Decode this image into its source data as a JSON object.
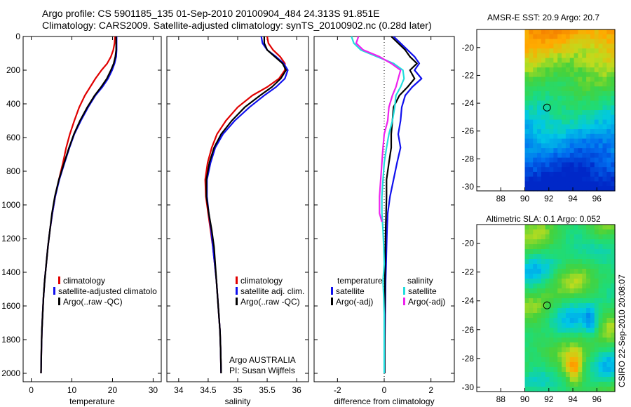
{
  "titles": {
    "line1": "Argo profile: CS 5901185_135 01-Sep-2010 20100904_484 24.313S 91.851E",
    "line2": "Climatology: CARS2009. Satellite-adjusted climatology: synTS_20100902.nc (0.28d later)"
  },
  "colors": {
    "climatology": "#e00000",
    "satellite": "#1010ee",
    "argo": "#000000",
    "satellite_salinity": "#22dddd",
    "argo_salinity": "#ee22ee"
  },
  "chart_data": [
    {
      "type": "line",
      "id": "temperature",
      "xlabel": "temperature",
      "ylabel": "",
      "xlim": [
        -2,
        32
      ],
      "ylim": [
        2050,
        0
      ],
      "xticks": [
        0,
        10,
        20,
        30
      ],
      "yticks": [
        0,
        200,
        400,
        600,
        800,
        1000,
        1200,
        1400,
        1600,
        1800,
        2000
      ],
      "legend": {
        "placement": "lower-right",
        "entries": [
          "climatology",
          "satellite-adjusted climatology",
          "Argo(..raw -QC)"
        ],
        "visible_text": [
          "climatology",
          "satellite-adjusted climatolo",
          "Argo(..raw -QC)"
        ]
      },
      "series": [
        {
          "name": "climatology",
          "color_key": "climatology",
          "x": [
            20.6,
            20.5,
            20.2,
            19.6,
            18.7,
            17.3,
            15.8,
            14.5,
            13.2,
            11.8,
            10.6,
            9.5,
            8.6,
            7.8,
            6.8,
            5.9,
            5.2,
            4.6,
            4.1,
            3.7,
            3.3,
            3.0,
            2.8,
            2.6,
            2.5,
            2.4
          ],
          "y": [
            0,
            40,
            80,
            120,
            160,
            200,
            250,
            300,
            350,
            420,
            500,
            580,
            660,
            750,
            850,
            950,
            1050,
            1150,
            1250,
            1350,
            1450,
            1550,
            1650,
            1750,
            1850,
            2000
          ]
        },
        {
          "name": "satellite-adjusted climatology",
          "color_key": "satellite",
          "x": [
            21.0,
            21.0,
            21.0,
            20.9,
            20.5,
            19.9,
            18.9,
            17.5,
            15.8,
            14.0,
            12.2,
            10.6,
            9.4,
            8.2,
            6.9,
            5.9,
            5.2,
            4.6,
            4.1,
            3.7,
            3.3,
            3.0,
            2.8,
            2.6,
            2.5,
            2.4
          ],
          "y": [
            0,
            40,
            80,
            120,
            160,
            200,
            250,
            300,
            350,
            420,
            500,
            580,
            660,
            750,
            850,
            950,
            1050,
            1150,
            1250,
            1350,
            1450,
            1550,
            1650,
            1750,
            1850,
            2000
          ]
        },
        {
          "name": "Argo(..raw -QC)",
          "color_key": "argo",
          "x": [
            20.9,
            20.9,
            20.9,
            20.7,
            20.3,
            19.6,
            18.6,
            17.2,
            15.6,
            13.8,
            12.0,
            10.5,
            9.3,
            8.1,
            6.8,
            5.8,
            5.1,
            4.6,
            4.1,
            3.7,
            3.3,
            3.0,
            2.8,
            2.6,
            2.5,
            2.4
          ],
          "y": [
            0,
            40,
            80,
            120,
            160,
            200,
            250,
            300,
            350,
            420,
            500,
            580,
            660,
            750,
            850,
            950,
            1050,
            1150,
            1250,
            1350,
            1450,
            1550,
            1650,
            1750,
            1850,
            2000
          ]
        }
      ]
    },
    {
      "type": "line",
      "id": "salinity",
      "xlabel": "salinity",
      "xlim": [
        33.8,
        36.2
      ],
      "ylim": [
        2050,
        0
      ],
      "xticks": [
        34,
        34.5,
        35,
        35.5,
        36
      ],
      "legend": {
        "placement": "lower-right",
        "entries": [
          "climatology",
          "satellite adj. clim.",
          "Argo(..raw -QC)"
        ]
      },
      "annotation": [
        "Argo AUSTRALIA",
        "PI: Susan Wijffels"
      ],
      "series": [
        {
          "name": "climatology",
          "color_key": "climatology",
          "x": [
            35.5,
            35.52,
            35.6,
            35.72,
            35.8,
            35.8,
            35.7,
            35.5,
            35.25,
            35.0,
            34.8,
            34.65,
            34.56,
            34.49,
            34.45,
            34.46,
            34.5,
            34.54,
            34.58,
            34.61,
            34.64,
            34.66,
            34.68,
            34.7,
            34.71,
            34.72
          ],
          "y": [
            0,
            40,
            80,
            120,
            160,
            200,
            250,
            300,
            350,
            420,
            500,
            580,
            660,
            750,
            850,
            950,
            1050,
            1150,
            1250,
            1350,
            1450,
            1550,
            1650,
            1750,
            1850,
            2000
          ]
        },
        {
          "name": "satellite adj. clim.",
          "color_key": "satellite",
          "x": [
            35.4,
            35.42,
            35.5,
            35.65,
            35.78,
            35.85,
            35.8,
            35.65,
            35.45,
            35.2,
            34.95,
            34.75,
            34.62,
            34.54,
            34.48,
            34.48,
            34.51,
            34.55,
            34.58,
            34.61,
            34.64,
            34.66,
            34.68,
            34.7,
            34.71,
            34.72
          ],
          "y": [
            0,
            40,
            80,
            120,
            160,
            200,
            250,
            300,
            350,
            420,
            500,
            580,
            660,
            750,
            850,
            950,
            1050,
            1150,
            1250,
            1350,
            1450,
            1550,
            1650,
            1750,
            1850,
            2000
          ]
        },
        {
          "name": "Argo(..raw -QC)",
          "color_key": "argo",
          "x": [
            35.45,
            35.45,
            35.5,
            35.63,
            35.76,
            35.82,
            35.73,
            35.58,
            35.38,
            35.12,
            34.9,
            34.72,
            34.6,
            34.52,
            34.47,
            34.47,
            34.51,
            34.56,
            34.6,
            34.62,
            34.64,
            34.66,
            34.68,
            34.7,
            34.71,
            34.72
          ],
          "y": [
            0,
            40,
            80,
            120,
            160,
            200,
            250,
            300,
            350,
            420,
            500,
            580,
            660,
            750,
            850,
            950,
            1050,
            1150,
            1250,
            1350,
            1450,
            1550,
            1650,
            1750,
            1850,
            2000
          ]
        }
      ]
    },
    {
      "type": "line",
      "id": "difference",
      "xlabel": "difference from climatology",
      "xlim": [
        -3,
        3
      ],
      "ylim": [
        2050,
        0
      ],
      "xticks": [
        -2,
        0,
        2
      ],
      "zero_line": "dotted",
      "legend": {
        "placement": "lower-center",
        "groups": [
          {
            "title": "temperature",
            "entries": [
              "satellite",
              "Argo(-adj)"
            ]
          },
          {
            "title": "salinity",
            "entries": [
              "satellite",
              "Argo(-adj)"
            ]
          }
        ]
      },
      "series": [
        {
          "name": "temperature satellite",
          "color_key": "satellite",
          "x": [
            0.4,
            0.7,
            1.0,
            1.3,
            1.5,
            1.3,
            1.6,
            1.2,
            0.9,
            0.75,
            0.7,
            0.6,
            0.7,
            0.55,
            0.4,
            0.25,
            0.15,
            0.12,
            0.1,
            0.08,
            0.06,
            0.05,
            0.04,
            0.03,
            0.02,
            0.02
          ],
          "y": [
            0,
            40,
            80,
            120,
            160,
            200,
            250,
            300,
            350,
            420,
            500,
            580,
            660,
            750,
            850,
            950,
            1050,
            1150,
            1250,
            1350,
            1450,
            1550,
            1650,
            1750,
            1850,
            2000
          ]
        },
        {
          "name": "temperature Argo(-adj)",
          "color_key": "argo",
          "x": [
            0.3,
            0.6,
            0.9,
            1.1,
            1.4,
            1.1,
            1.3,
            1.0,
            0.65,
            0.4,
            0.35,
            0.3,
            0.3,
            0.2,
            0.1,
            0.1,
            0.08,
            0.06,
            0.05,
            0.04,
            0.03,
            0.03,
            0.02,
            0.02,
            0.02,
            0.02
          ],
          "y": [
            0,
            40,
            80,
            120,
            160,
            200,
            250,
            300,
            350,
            420,
            500,
            580,
            660,
            750,
            850,
            950,
            1050,
            1150,
            1250,
            1350,
            1450,
            1550,
            1650,
            1750,
            1850,
            2000
          ]
        },
        {
          "name": "salinity satellite",
          "color_key": "satellite_salinity",
          "x": [
            -1.4,
            -1.3,
            -1.0,
            -0.3,
            0.4,
            0.8,
            0.85,
            0.7,
            0.5,
            0.45,
            0.35,
            0.2,
            0.1,
            0.0,
            -0.05,
            -0.1,
            -0.1,
            -0.05,
            -0.02,
            0.0,
            -0.05,
            -0.02,
            0.0,
            0.0,
            0.0,
            0.0
          ],
          "y": [
            0,
            40,
            80,
            120,
            160,
            200,
            250,
            300,
            350,
            420,
            500,
            580,
            660,
            750,
            850,
            950,
            1050,
            1150,
            1250,
            1350,
            1450,
            1550,
            1650,
            1750,
            1850,
            2000
          ]
        },
        {
          "name": "salinity Argo(-adj)",
          "color_key": "argo_salinity",
          "x": [
            -1.1,
            -1.2,
            -0.9,
            -0.2,
            0.3,
            0.7,
            0.6,
            0.5,
            0.35,
            0.2,
            0.15,
            0.0,
            -0.05,
            -0.1,
            -0.15,
            -0.2,
            -0.2,
            -0.1
          ],
          "y": [
            0,
            40,
            80,
            120,
            160,
            200,
            250,
            300,
            350,
            420,
            500,
            580,
            660,
            750,
            850,
            950,
            1050,
            1100
          ]
        }
      ]
    },
    {
      "type": "heatmap",
      "id": "sst_map",
      "title": "AMSR-E SST: 20.9 Argo: 20.7",
      "xlim": [
        86,
        97.5
      ],
      "ylim": [
        -30.3,
        -18.7
      ],
      "xticks": [
        88,
        90,
        92,
        94,
        96
      ],
      "yticks": [
        -20,
        -22,
        -24,
        -26,
        -28,
        -30
      ],
      "marker": {
        "lon": 91.851,
        "lat": -24.313
      },
      "data_extent": {
        "lon": [
          90,
          97.5
        ],
        "lat": [
          -30.3,
          -18.7
        ]
      }
    },
    {
      "type": "heatmap",
      "id": "sla_map",
      "title": "Altimetric SLA: 0.1 Argo: 0.052",
      "xlim": [
        86,
        97.5
      ],
      "ylim": [
        -30.3,
        -18.7
      ],
      "xticks": [
        88,
        90,
        92,
        94,
        96
      ],
      "yticks": [
        -20,
        -22,
        -24,
        -26,
        -28,
        -30
      ],
      "marker": {
        "lon": 91.851,
        "lat": -24.313
      },
      "data_extent": {
        "lon": [
          90,
          97.5
        ],
        "lat": [
          -30.3,
          -18.7
        ]
      }
    }
  ],
  "stamp": "CSIRO 22-Sep-2010 20:08:07"
}
